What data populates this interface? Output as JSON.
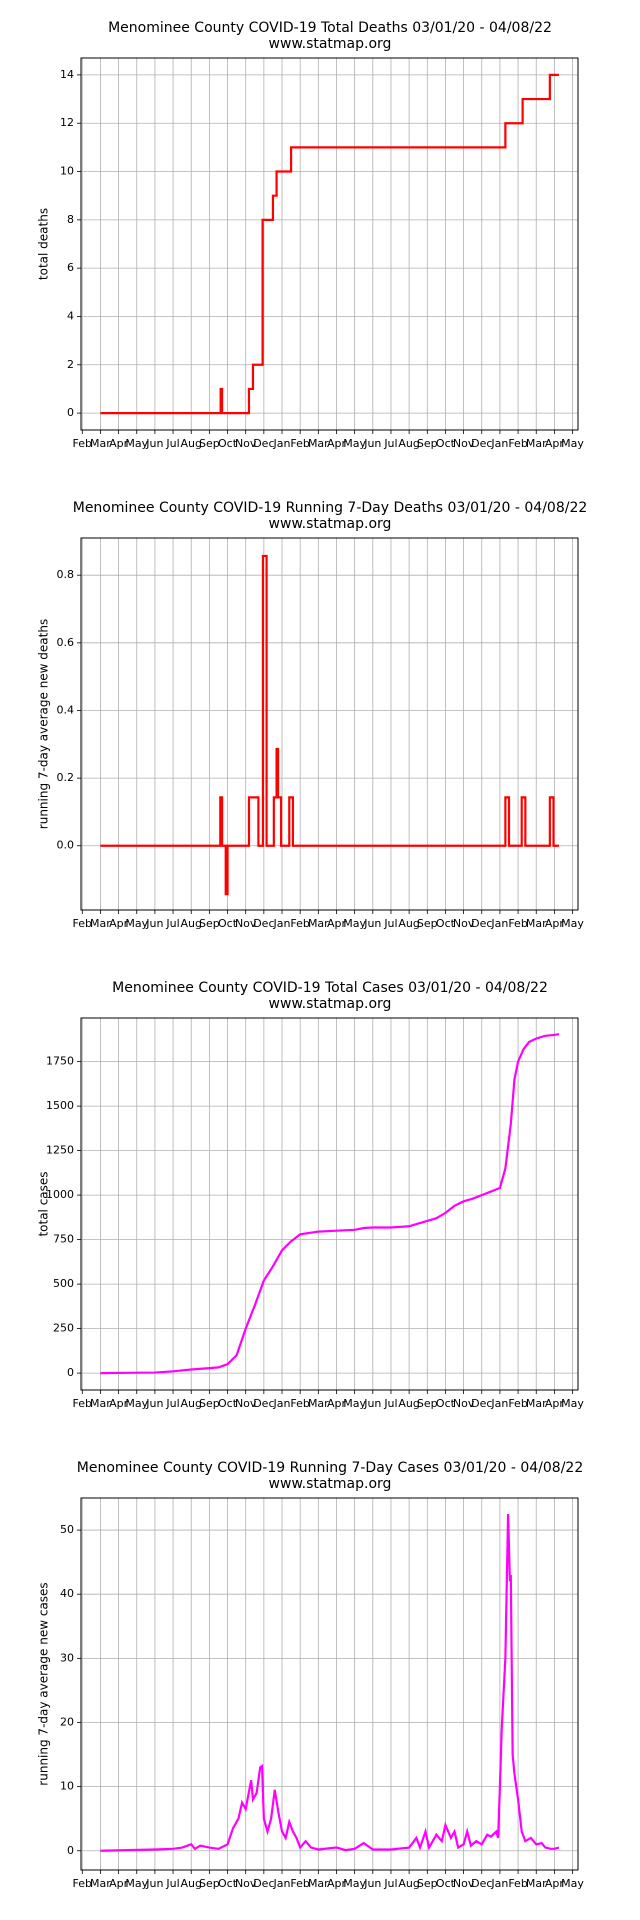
{
  "chart_data": [
    {
      "type": "line",
      "title": "Menominee County COVID-19 Total Deaths 03/01/20 - 04/08/22",
      "subtitle": "www.statmap.org",
      "y_label": "total deaths",
      "grid": true,
      "xlim": [
        -0.07,
        27.3
      ],
      "xticks": [
        {
          "value": 0,
          "label": "Feb"
        },
        {
          "value": 1,
          "label": "Mar"
        },
        {
          "value": 2,
          "label": "Apr"
        },
        {
          "value": 3,
          "label": "May"
        },
        {
          "value": 4,
          "label": "Jun"
        },
        {
          "value": 5,
          "label": "Jul"
        },
        {
          "value": 6,
          "label": "Aug"
        },
        {
          "value": 7,
          "label": "Sep"
        },
        {
          "value": 8,
          "label": "Oct"
        },
        {
          "value": 9,
          "label": "Nov"
        },
        {
          "value": 10,
          "label": "Dec"
        },
        {
          "value": 11,
          "label": "Jan"
        },
        {
          "value": 12,
          "label": "Feb"
        },
        {
          "value": 13,
          "label": "Mar"
        },
        {
          "value": 14,
          "label": "Apr"
        },
        {
          "value": 15,
          "label": "May"
        },
        {
          "value": 16,
          "label": "Jun"
        },
        {
          "value": 17,
          "label": "Jul"
        },
        {
          "value": 18,
          "label": "Aug"
        },
        {
          "value": 19,
          "label": "Sep"
        },
        {
          "value": 20,
          "label": "Oct"
        },
        {
          "value": 21,
          "label": "Nov"
        },
        {
          "value": 22,
          "label": "Dec"
        },
        {
          "value": 23,
          "label": "Jan"
        },
        {
          "value": 24,
          "label": "Feb"
        },
        {
          "value": 25,
          "label": "Mar"
        },
        {
          "value": 26,
          "label": "Apr"
        },
        {
          "value": 27,
          "label": "May"
        }
      ],
      "ylim": [
        -0.7,
        14.7
      ],
      "yticks": [
        0,
        2,
        4,
        6,
        8,
        10,
        12,
        14
      ],
      "series": [
        {
          "color": "#ff0000",
          "x": [
            1,
            7.62,
            7.62,
            7.7,
            7.7,
            9.18,
            9.18,
            9.4,
            9.4,
            9.93,
            9.93,
            10.5,
            10.5,
            10.7,
            10.7,
            11.5,
            11.5,
            23.3,
            23.3,
            24.25,
            24.25,
            25.75,
            25.75,
            26.25
          ],
          "values": [
            0,
            0,
            1,
            1,
            0,
            0,
            1,
            1,
            2,
            2,
            8,
            8,
            9,
            9,
            10,
            10,
            11,
            11,
            12,
            12,
            13,
            13,
            14,
            14
          ]
        }
      ]
    },
    {
      "type": "line",
      "title": "Menominee County COVID-19 Running 7-Day Deaths 03/01/20 - 04/08/22",
      "subtitle": "www.statmap.org",
      "y_label": "running 7-day average new deaths",
      "grid": true,
      "xlim": [
        -0.07,
        27.3
      ],
      "xticks": [
        {
          "value": 0,
          "label": "Feb"
        },
        {
          "value": 1,
          "label": "Mar"
        },
        {
          "value": 2,
          "label": "Apr"
        },
        {
          "value": 3,
          "label": "May"
        },
        {
          "value": 4,
          "label": "Jun"
        },
        {
          "value": 5,
          "label": "Jul"
        },
        {
          "value": 6,
          "label": "Aug"
        },
        {
          "value": 7,
          "label": "Sep"
        },
        {
          "value": 8,
          "label": "Oct"
        },
        {
          "value": 9,
          "label": "Nov"
        },
        {
          "value": 10,
          "label": "Dec"
        },
        {
          "value": 11,
          "label": "Jan"
        },
        {
          "value": 12,
          "label": "Feb"
        },
        {
          "value": 13,
          "label": "Mar"
        },
        {
          "value": 14,
          "label": "Apr"
        },
        {
          "value": 15,
          "label": "May"
        },
        {
          "value": 16,
          "label": "Jun"
        },
        {
          "value": 17,
          "label": "Jul"
        },
        {
          "value": 18,
          "label": "Aug"
        },
        {
          "value": 19,
          "label": "Sep"
        },
        {
          "value": 20,
          "label": "Oct"
        },
        {
          "value": 21,
          "label": "Nov"
        },
        {
          "value": 22,
          "label": "Dec"
        },
        {
          "value": 23,
          "label": "Jan"
        },
        {
          "value": 24,
          "label": "Feb"
        },
        {
          "value": 25,
          "label": "Mar"
        },
        {
          "value": 26,
          "label": "Apr"
        },
        {
          "value": 27,
          "label": "May"
        }
      ],
      "ylim": [
        -0.19,
        0.91
      ],
      "yticks": [
        {
          "value": 0,
          "label": "0.0"
        },
        {
          "value": 0.2,
          "label": "0.2"
        },
        {
          "value": 0.4,
          "label": "0.4"
        },
        {
          "value": 0.6,
          "label": "0.6"
        },
        {
          "value": 0.8,
          "label": "0.8"
        }
      ],
      "series": [
        {
          "color": "#ff0000",
          "x": [
            1,
            7.6,
            7.6,
            7.7,
            7.7,
            7.9,
            7.9,
            8.0,
            8.0,
            9.18,
            9.18,
            9.7,
            9.7,
            9.95,
            9.95,
            10.15,
            10.15,
            10.55,
            10.55,
            10.7,
            10.7,
            10.78,
            10.78,
            10.95,
            10.95,
            11.4,
            11.4,
            11.6,
            11.6,
            23.3,
            23.3,
            23.5,
            23.5,
            24.2,
            24.2,
            24.4,
            24.4,
            25.75,
            25.75,
            25.95,
            25.95,
            26.25
          ],
          "values": [
            0,
            0,
            0.143,
            0.143,
            0,
            0,
            -0.143,
            -0.143,
            0,
            0,
            0.143,
            0.143,
            0,
            0,
            0.857,
            0.857,
            0,
            0,
            0.143,
            0.143,
            0.286,
            0.286,
            0.143,
            0.143,
            0,
            0,
            0.143,
            0.143,
            0,
            0,
            0.143,
            0.143,
            0,
            0,
            0.143,
            0.143,
            0,
            0,
            0.143,
            0.143,
            0,
            0
          ]
        }
      ]
    },
    {
      "type": "line",
      "title": "Menominee County COVID-19 Total Cases 03/01/20 - 04/08/22",
      "subtitle": "www.statmap.org",
      "y_label": "total cases",
      "grid": true,
      "xlim": [
        -0.07,
        27.3
      ],
      "xticks": [
        {
          "value": 0,
          "label": "Feb"
        },
        {
          "value": 1,
          "label": "Mar"
        },
        {
          "value": 2,
          "label": "Apr"
        },
        {
          "value": 3,
          "label": "May"
        },
        {
          "value": 4,
          "label": "Jun"
        },
        {
          "value": 5,
          "label": "Jul"
        },
        {
          "value": 6,
          "label": "Aug"
        },
        {
          "value": 7,
          "label": "Sep"
        },
        {
          "value": 8,
          "label": "Oct"
        },
        {
          "value": 9,
          "label": "Nov"
        },
        {
          "value": 10,
          "label": "Dec"
        },
        {
          "value": 11,
          "label": "Jan"
        },
        {
          "value": 12,
          "label": "Feb"
        },
        {
          "value": 13,
          "label": "Mar"
        },
        {
          "value": 14,
          "label": "Apr"
        },
        {
          "value": 15,
          "label": "May"
        },
        {
          "value": 16,
          "label": "Jun"
        },
        {
          "value": 17,
          "label": "Jul"
        },
        {
          "value": 18,
          "label": "Aug"
        },
        {
          "value": 19,
          "label": "Sep"
        },
        {
          "value": 20,
          "label": "Oct"
        },
        {
          "value": 21,
          "label": "Nov"
        },
        {
          "value": 22,
          "label": "Dec"
        },
        {
          "value": 23,
          "label": "Jan"
        },
        {
          "value": 24,
          "label": "Feb"
        },
        {
          "value": 25,
          "label": "Mar"
        },
        {
          "value": 26,
          "label": "Apr"
        },
        {
          "value": 27,
          "label": "May"
        }
      ],
      "ylim": [
        -95,
        1995
      ],
      "yticks": [
        0,
        250,
        500,
        750,
        1000,
        1250,
        1500,
        1750
      ],
      "series": [
        {
          "color": "#ff00ff",
          "x": [
            1,
            4,
            5,
            6,
            7,
            7.5,
            8,
            8.5,
            9,
            9.5,
            10,
            10.5,
            11,
            11.5,
            12,
            13,
            14,
            15,
            15.5,
            16,
            17,
            18,
            18.5,
            19,
            19.5,
            20,
            20.5,
            21,
            21.5,
            22,
            22.5,
            23,
            23.3,
            23.6,
            23.8,
            24,
            24.3,
            24.6,
            25,
            25.5,
            26,
            26.25
          ],
          "values": [
            0,
            3,
            10,
            20,
            28,
            32,
            50,
            100,
            250,
            380,
            520,
            600,
            690,
            740,
            780,
            795,
            800,
            805,
            815,
            818,
            818,
            825,
            840,
            855,
            870,
            900,
            940,
            965,
            980,
            1000,
            1020,
            1040,
            1150,
            1400,
            1650,
            1750,
            1820,
            1860,
            1880,
            1895,
            1900,
            1905
          ]
        }
      ]
    },
    {
      "type": "line",
      "title": "Menominee County COVID-19 Running 7-Day Cases 03/01/20 - 04/08/22",
      "subtitle": "www.statmap.org",
      "y_label": "running 7-day average new cases",
      "grid": true,
      "xlim": [
        -0.07,
        27.3
      ],
      "xticks": [
        {
          "value": 0,
          "label": "Feb"
        },
        {
          "value": 1,
          "label": "Mar"
        },
        {
          "value": 2,
          "label": "Apr"
        },
        {
          "value": 3,
          "label": "May"
        },
        {
          "value": 4,
          "label": "Jun"
        },
        {
          "value": 5,
          "label": "Jul"
        },
        {
          "value": 6,
          "label": "Aug"
        },
        {
          "value": 7,
          "label": "Sep"
        },
        {
          "value": 8,
          "label": "Oct"
        },
        {
          "value": 9,
          "label": "Nov"
        },
        {
          "value": 10,
          "label": "Dec"
        },
        {
          "value": 11,
          "label": "Jan"
        },
        {
          "value": 12,
          "label": "Feb"
        },
        {
          "value": 13,
          "label": "Mar"
        },
        {
          "value": 14,
          "label": "Apr"
        },
        {
          "value": 15,
          "label": "May"
        },
        {
          "value": 16,
          "label": "Jun"
        },
        {
          "value": 17,
          "label": "Jul"
        },
        {
          "value": 18,
          "label": "Aug"
        },
        {
          "value": 19,
          "label": "Sep"
        },
        {
          "value": 20,
          "label": "Oct"
        },
        {
          "value": 21,
          "label": "Nov"
        },
        {
          "value": 22,
          "label": "Dec"
        },
        {
          "value": 23,
          "label": "Jan"
        },
        {
          "value": 24,
          "label": "Feb"
        },
        {
          "value": 25,
          "label": "Mar"
        },
        {
          "value": 26,
          "label": "Apr"
        },
        {
          "value": 27,
          "label": "May"
        }
      ],
      "ylim": [
        -3,
        55
      ],
      "yticks": [
        0,
        10,
        20,
        30,
        40,
        50
      ],
      "series": [
        {
          "color": "#ff00ff",
          "x": [
            1,
            4,
            5,
            5.5,
            6,
            6.2,
            6.5,
            7,
            7.5,
            8,
            8.3,
            8.6,
            8.8,
            9,
            9.1,
            9.3,
            9.4,
            9.6,
            9.8,
            9.9,
            10,
            10.2,
            10.4,
            10.6,
            10.8,
            11,
            11.2,
            11.4,
            11.6,
            11.8,
            12,
            12.3,
            12.6,
            13,
            14,
            14.5,
            15,
            15.5,
            16,
            17,
            18,
            18.4,
            18.6,
            18.9,
            19.1,
            19.5,
            19.8,
            20,
            20.3,
            20.5,
            20.7,
            21,
            21.2,
            21.4,
            21.7,
            22,
            22.3,
            22.5,
            22.8,
            22.9,
            23,
            23.1,
            23.3,
            23.45,
            23.55,
            23.6,
            23.7,
            23.8,
            24,
            24.2,
            24.4,
            24.7,
            25,
            25.3,
            25.5,
            25.8,
            26,
            26.25
          ],
          "values": [
            0,
            0.2,
            0.3,
            0.5,
            1,
            0.3,
            0.8,
            0.5,
            0.3,
            1,
            3.5,
            5,
            7.5,
            6.5,
            8,
            11,
            8,
            9,
            13,
            13.2,
            5,
            3,
            5,
            9.5,
            6,
            3,
            2,
            4.5,
            3,
            2,
            0.5,
            1.5,
            0.5,
            0.2,
            0.5,
            0.1,
            0.3,
            1.2,
            0.2,
            0.2,
            0.5,
            2,
            0.5,
            3,
            0.5,
            2.5,
            1.5,
            4,
            2,
            3,
            0.5,
            1,
            3,
            0.8,
            1.5,
            1,
            2.5,
            2.2,
            3,
            2,
            10,
            19,
            30,
            52.5,
            42,
            43,
            15,
            12,
            8,
            3,
            1.5,
            2,
            1,
            1.2,
            0.5,
            0.3,
            0.3,
            0.5
          ]
        }
      ]
    }
  ]
}
